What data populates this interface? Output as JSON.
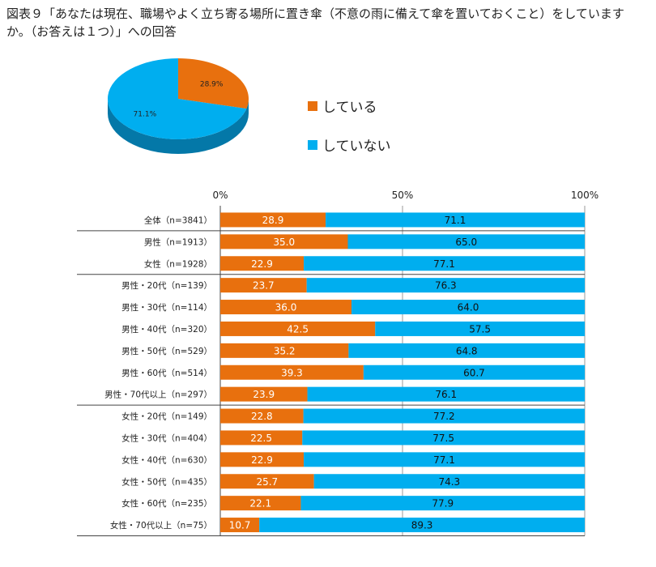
{
  "title": "図表９「あなたは現在、職場やよく立ち寄る場所に置き傘（不意の雨に備えて傘を置いておくこと）をしていますか。（お答えは１つ）」への回答",
  "colors": {
    "yes": "#E8700E",
    "no": "#00AEEF",
    "yes_dark": "#9C4A0A",
    "no_dark": "#0478A8"
  },
  "chart_data": [
    {
      "type": "pie",
      "slices": [
        {
          "name": "している",
          "value": 28.9,
          "label": "28.9%"
        },
        {
          "name": "していない",
          "value": 71.1,
          "label": "71.1%"
        }
      ]
    },
    {
      "type": "bar",
      "orientation": "horizontal",
      "stacked": true,
      "xticks": [
        "0%",
        "50%",
        "100%"
      ],
      "xlim": [
        0,
        100
      ],
      "series": [
        {
          "name": "している",
          "color": "#E8700E"
        },
        {
          "name": "していない",
          "color": "#00AEEF"
        }
      ],
      "categories": [
        "全体（n=3841）",
        "男性（n=1913）",
        "女性（n=1928）",
        "男性・20代（n=139）",
        "男性・30代（n=114）",
        "男性・40代（n=320）",
        "男性・50代（n=529）",
        "男性・60代（n=514）",
        "男性・70代以上（n=297）",
        "女性・20代（n=149）",
        "女性・30代（n=404）",
        "女性・40代（n=630）",
        "女性・50代（n=435）",
        "女性・60代（n=235）",
        "女性・70代以上（n=75）"
      ],
      "values_yes": [
        28.9,
        35.0,
        22.9,
        23.7,
        36.0,
        42.5,
        35.2,
        39.3,
        23.9,
        22.8,
        22.5,
        22.9,
        25.7,
        22.1,
        10.7
      ],
      "values_no": [
        71.1,
        65.0,
        77.1,
        76.3,
        64.0,
        57.5,
        64.8,
        60.7,
        76.1,
        77.2,
        77.5,
        77.1,
        74.3,
        77.9,
        89.3
      ],
      "labels_yes": [
        "28.9",
        "35.0",
        "22.9",
        "23.7",
        "36.0",
        "42.5",
        "35.2",
        "39.3",
        "23.9",
        "22.8",
        "22.5",
        "22.9",
        "25.7",
        "22.1",
        "10.7"
      ],
      "labels_no": [
        "71.1",
        "65.0",
        "77.1",
        "76.3",
        "64.0",
        "57.5",
        "64.8",
        "60.7",
        "76.1",
        "77.2",
        "77.5",
        "77.1",
        "74.3",
        "77.9",
        "89.3"
      ],
      "group_breaks_after": [
        0,
        2,
        8,
        14
      ]
    }
  ]
}
